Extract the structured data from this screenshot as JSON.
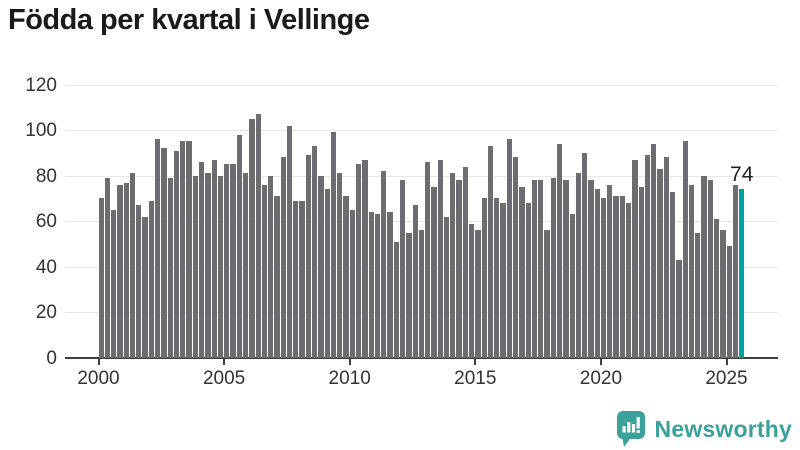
{
  "title": "Födda per kvartal i Vellinge",
  "annotation": {
    "label": "74"
  },
  "branding": {
    "name": "Newsworthy",
    "icon": "bar-chart-speech-bubble-icon"
  },
  "colors": {
    "bar_gray": "#6c6c71",
    "highlight_teal": "#00a1a1",
    "logo_teal": "#3ba29b",
    "title_text": "#1a1a1a",
    "axis_text": "#333333",
    "gridline": "#e7e7e7",
    "axis_line": "#3f3f3f"
  },
  "chart_data": {
    "type": "bar",
    "title": "Födda per kvartal i Vellinge",
    "x_period": "quarters",
    "x_start": "2000-Q1",
    "x_end": "2025-Q3",
    "x_tick_labels": [
      "2000",
      "2005",
      "2010",
      "2015",
      "2020",
      "2025"
    ],
    "y_ticks": [
      0,
      20,
      40,
      60,
      80,
      100,
      120
    ],
    "ylim": [
      0,
      120
    ],
    "grid": true,
    "series": [
      {
        "name": "Födda per kvartal",
        "values": [
          70,
          79,
          65,
          76,
          77,
          81,
          67,
          62,
          69,
          96,
          92,
          79,
          91,
          95,
          95,
          80,
          86,
          81,
          87,
          80,
          85,
          85,
          98,
          81,
          105,
          107,
          76,
          80,
          71,
          88,
          102,
          69,
          69,
          89,
          93,
          80,
          74,
          99,
          81,
          71,
          65,
          85,
          87,
          64,
          63,
          82,
          64,
          51,
          78,
          55,
          67,
          56,
          86,
          75,
          87,
          62,
          81,
          78,
          84,
          59,
          56,
          70,
          93,
          70,
          68,
          96,
          88,
          75,
          68,
          78,
          78,
          56,
          79,
          94,
          78,
          63,
          81,
          90,
          78,
          74,
          70,
          76,
          71,
          71,
          68,
          87,
          75,
          89,
          94,
          83,
          88,
          73,
          43,
          95,
          76,
          55,
          80,
          78,
          61,
          56,
          49,
          76,
          74
        ]
      }
    ],
    "highlight": {
      "index": 102,
      "value": 74,
      "label": "74"
    }
  }
}
